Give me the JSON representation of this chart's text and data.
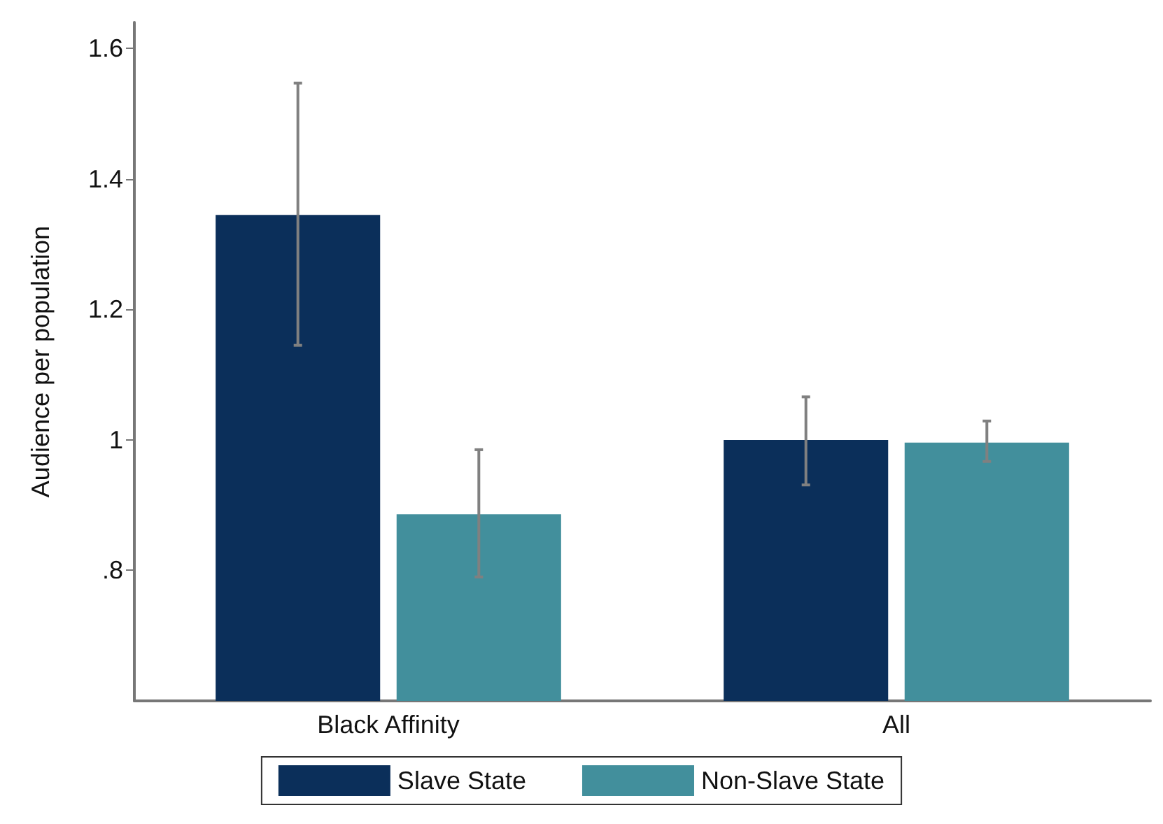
{
  "chart_data": {
    "type": "bar",
    "ylabel": "Audience per population",
    "categories": [
      "Black Affinity",
      "All"
    ],
    "series": [
      {
        "name": "Slave State",
        "color": "#0b2f5a",
        "values": [
          1.345,
          1.0
        ],
        "errors": [
          [
            1.145,
            1.547
          ],
          [
            0.931,
            1.066
          ]
        ]
      },
      {
        "name": "Non-Slave State",
        "color": "#428f9c",
        "values": [
          0.886,
          0.996
        ],
        "errors": [
          [
            0.79,
            0.985
          ],
          [
            0.967,
            1.029
          ]
        ]
      }
    ],
    "ylim": [
      0.6,
      1.64
    ],
    "yticks": [
      {
        "value": 0.8,
        "label": ".8"
      },
      1,
      1.2,
      1.4,
      1.6
    ],
    "grid": false,
    "legend": "bottom"
  }
}
